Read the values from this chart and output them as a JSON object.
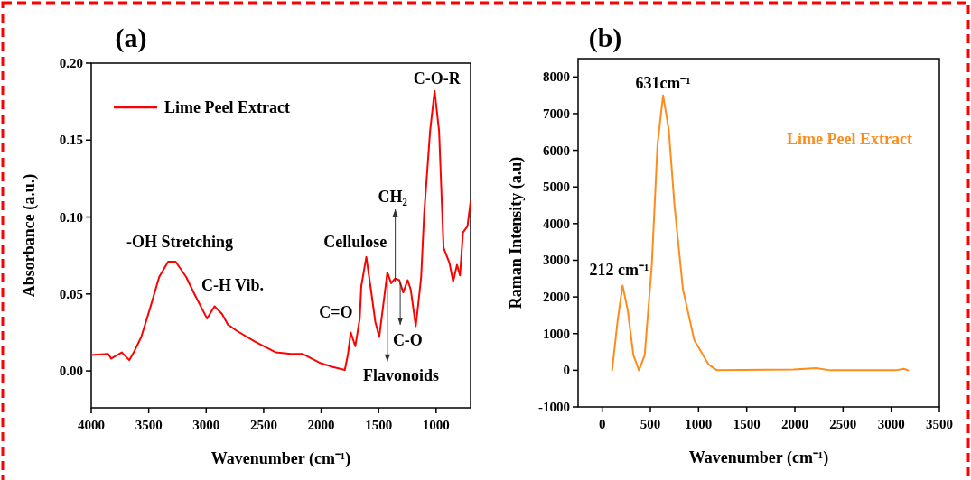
{
  "chart_data": [
    {
      "type": "line",
      "title": "(a)",
      "xlabel": "Wavenumber (cm⁻¹)",
      "ylabel": "Absorbance (a.u.)",
      "xlim": [
        4000,
        700
      ],
      "ylim": [
        -0.024,
        0.2
      ],
      "xticks": [
        4000,
        3500,
        3000,
        2500,
        2000,
        1500,
        1000
      ],
      "yticks": [
        {
          "value": 0,
          "label": "0.00"
        },
        {
          "value": 0.05,
          "label": "0.05"
        },
        {
          "value": 0.1,
          "label": "0.10"
        },
        {
          "value": 0.15,
          "label": "0.15"
        },
        {
          "value": 0.2,
          "label": "0.20"
        }
      ],
      "legend": "top left",
      "series": [
        {
          "name": "Lime Peel Extract",
          "color": "#ff0000",
          "x": [
            4000,
            3852,
            3826,
            3734,
            3669,
            3630,
            3565,
            3487,
            3409,
            3331,
            3266,
            3174,
            3096,
            2992,
            2927,
            2862,
            2810,
            2732,
            2576,
            2393,
            2263,
            2159,
            2003,
            1898,
            1794,
            1768,
            1742,
            1703,
            1664,
            1651,
            1607,
            1560,
            1529,
            1495,
            1456,
            1424,
            1391,
            1357,
            1320,
            1286,
            1247,
            1221,
            1195,
            1177,
            1156,
            1130,
            1104,
            1052,
            1013,
            974,
            935,
            883,
            852,
            818,
            792,
            766,
            727,
            700
          ],
          "values": [
            0.0103,
            0.011,
            0.008,
            0.012,
            0.007,
            0.012,
            0.022,
            0.041,
            0.061,
            0.071,
            0.071,
            0.061,
            0.049,
            0.034,
            0.042,
            0.037,
            0.03,
            0.026,
            0.019,
            0.012,
            0.011,
            0.011,
            0.005,
            0.0025,
            0.0006,
            0.0103,
            0.025,
            0.016,
            0.034,
            0.055,
            0.074,
            0.049,
            0.032,
            0.022,
            0.045,
            0.064,
            0.057,
            0.06,
            0.059,
            0.051,
            0.059,
            0.053,
            0.039,
            0.029,
            0.043,
            0.061,
            0.102,
            0.156,
            0.182,
            0.156,
            0.08,
            0.07,
            0.058,
            0.069,
            0.062,
            0.09,
            0.094,
            0.11
          ]
        }
      ],
      "annotations": [
        "-OH Stretching",
        "C-H Vib.",
        "C=O",
        "Cellulose",
        {
          "text": "CH₂",
          "x": 1355,
          "y": 0.058
        },
        {
          "text": "C-O",
          "x": 1312,
          "y": 0.058
        },
        {
          "text": "Flavonoids",
          "x": 1424,
          "y": 0.062
        },
        "C-O-R"
      ]
    },
    {
      "type": "line",
      "title": "(b)",
      "xlabel": "Wavenumber (cm⁻¹)",
      "ylabel": "Raman Intensity (a.u)",
      "xlim": [
        -250,
        3500
      ],
      "ylim": [
        -1000,
        8500
      ],
      "xticks": [
        0,
        500,
        1000,
        1500,
        2000,
        2500,
        3000,
        3500
      ],
      "yticks": [
        -1000,
        0,
        1000,
        2000,
        3000,
        4000,
        5000,
        6000,
        7000,
        8000
      ],
      "legend": "top right",
      "series": [
        {
          "name": "Lime Peel Extract",
          "color": "#ff8c1a",
          "x": [
            103,
            162,
            212,
            265,
            324,
            382,
            441,
            515,
            574,
            632,
            691,
            750,
            838,
            956,
            1103,
            1191,
            1985,
            2221,
            2368,
            3044,
            3132,
            3176
          ],
          "values": [
            0,
            1390,
            2310,
            1640,
            410,
            0,
            410,
            2870,
            6150,
            7500,
            6560,
            4510,
            2210,
            820,
            160,
            0,
            20,
            60,
            0,
            0,
            40,
            0
          ]
        }
      ],
      "annotations": [
        "631cm⁻¹",
        "212 cm⁻¹"
      ]
    }
  ]
}
